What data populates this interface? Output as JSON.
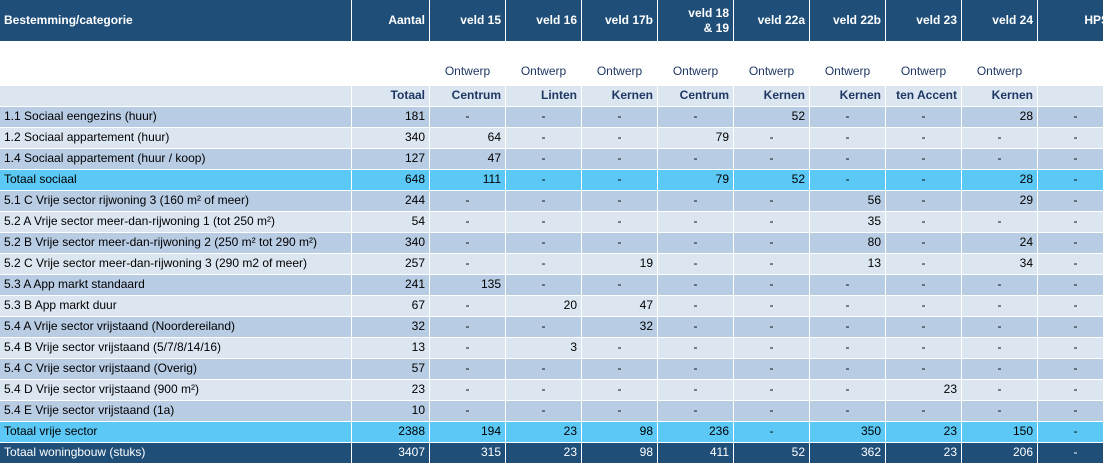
{
  "header": {
    "category": "Bestemming/categorie",
    "cols": [
      "Aantal",
      "veld 15",
      "veld 16",
      "veld 17b",
      "veld 18\n& 19",
      "veld 22a",
      "veld 22b",
      "veld 23",
      "veld 24",
      "HPS"
    ]
  },
  "subheader": {
    "ontwerp": [
      "",
      "",
      "Ontwerp",
      "Ontwerp",
      "Ontwerp",
      "Ontwerp",
      "Ontwerp",
      "Ontwerp",
      "Ontwerp",
      "Ontwerp",
      ""
    ],
    "types": [
      "",
      "Totaal",
      "Centrum",
      "Linten",
      "Kernen",
      "Centrum",
      "Kernen",
      "Kernen",
      "ten Accent",
      "Kernen",
      ""
    ]
  },
  "rows": [
    {
      "kind": "odd",
      "cells": [
        "1.1 Sociaal eengezins (huur)",
        "181",
        "-",
        "-",
        "-",
        "-",
        "52",
        "-",
        "-",
        "28",
        "-"
      ]
    },
    {
      "kind": "even",
      "cells": [
        "1.2 Sociaal appartement (huur)",
        "340",
        "64",
        "-",
        "-",
        "79",
        "-",
        "-",
        "-",
        "-",
        "-"
      ]
    },
    {
      "kind": "odd",
      "cells": [
        "1.4 Sociaal appartement (huur / koop)",
        "127",
        "47",
        "-",
        "-",
        "-",
        "-",
        "-",
        "-",
        "-",
        "-"
      ]
    },
    {
      "kind": "sum",
      "cells": [
        "Totaal sociaal",
        "648",
        "111",
        "-",
        "-",
        "79",
        "52",
        "-",
        "-",
        "28",
        "-"
      ]
    },
    {
      "kind": "odd",
      "cells": [
        "5.1 C Vrije sector rijwoning 3 (160 m² of meer)",
        "244",
        "-",
        "-",
        "-",
        "-",
        "-",
        "56",
        "-",
        "29",
        "-"
      ]
    },
    {
      "kind": "even",
      "cells": [
        "5.2 A Vrije sector meer-dan-rijwoning 1 (tot 250 m²)",
        "54",
        "-",
        "-",
        "-",
        "-",
        "-",
        "35",
        "-",
        "-",
        "-"
      ]
    },
    {
      "kind": "odd",
      "cells": [
        "5.2 B Vrije sector meer-dan-rijwoning 2 (250 m² tot 290 m²)",
        "340",
        "-",
        "-",
        "-",
        "-",
        "-",
        "80",
        "-",
        "24",
        "-"
      ]
    },
    {
      "kind": "even",
      "cells": [
        "5.2 C Vrije sector meer-dan-rijwoning 3 (290 m2 of meer)",
        "257",
        "-",
        "-",
        "19",
        "-",
        "-",
        "13",
        "-",
        "34",
        "-"
      ]
    },
    {
      "kind": "odd",
      "cells": [
        "5.3 A App markt standaard",
        "241",
        "135",
        "-",
        "-",
        "-",
        "-",
        "-",
        "-",
        "-",
        "-"
      ]
    },
    {
      "kind": "even",
      "cells": [
        "5.3 B App markt duur",
        "67",
        "-",
        "20",
        "47",
        "-",
        "-",
        "-",
        "-",
        "-",
        "-"
      ]
    },
    {
      "kind": "odd",
      "cells": [
        "5.4 A Vrije sector vrijstaand (Noordereiland)",
        "32",
        "-",
        "-",
        "32",
        "-",
        "-",
        "-",
        "-",
        "-",
        "-"
      ]
    },
    {
      "kind": "even",
      "cells": [
        "5.4 B Vrije sector vrijstaand (5/7/8/14/16)",
        "13",
        "-",
        "3",
        "-",
        "-",
        "-",
        "-",
        "-",
        "-",
        "-"
      ]
    },
    {
      "kind": "odd",
      "cells": [
        "5.4 C Vrije sector vrijstaand (Overig)",
        "57",
        "-",
        "-",
        "-",
        "-",
        "-",
        "-",
        "-",
        "-",
        "-"
      ]
    },
    {
      "kind": "even",
      "cells": [
        "5.4 D Vrije sector vrijstaand (900 m²)",
        "23",
        "-",
        "-",
        "-",
        "-",
        "-",
        "-",
        "23",
        "-",
        "-"
      ]
    },
    {
      "kind": "odd",
      "cells": [
        "5.4 E Vrije sector vrijstaand (1a)",
        "10",
        "-",
        "-",
        "-",
        "-",
        "-",
        "-",
        "-",
        "-",
        "-"
      ]
    },
    {
      "kind": "sum",
      "cells": [
        "Totaal vrije sector",
        "2388",
        "194",
        "23",
        "98",
        "236",
        "-",
        "350",
        "23",
        "150",
        "-"
      ]
    },
    {
      "kind": "tot",
      "cells": [
        "Totaal woningbouw (stuks)",
        "3407",
        "315",
        "23",
        "98",
        "411",
        "52",
        "362",
        "23",
        "206",
        "-"
      ]
    }
  ],
  "colors": {
    "header": "#1F4E79",
    "subheader": "#95B3D7",
    "row_dark": "#B8CCE4",
    "row_light": "#DCE6F1",
    "subtotal": "#5BC8F5"
  }
}
